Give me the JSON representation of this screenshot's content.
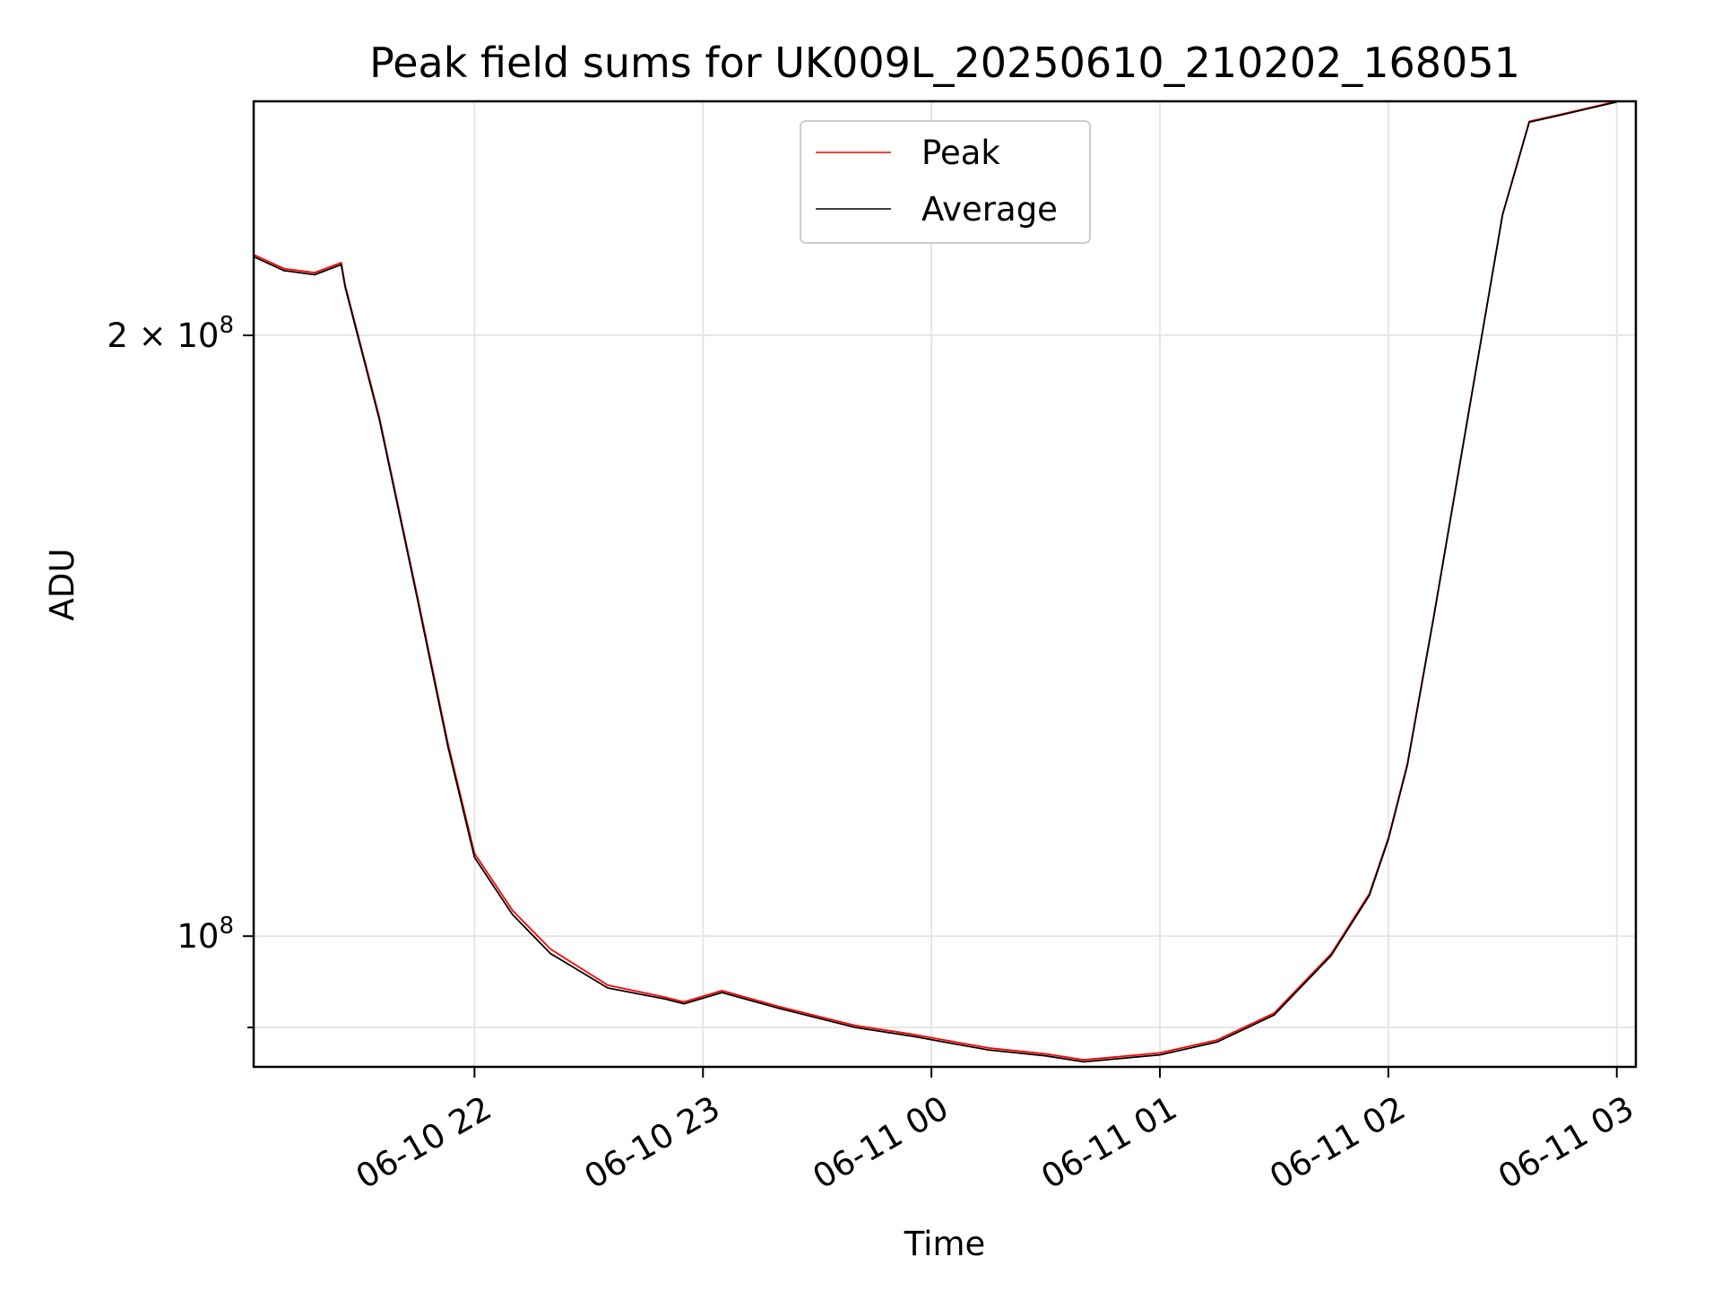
{
  "chart_data": {
    "type": "line",
    "title": "Peak field sums for UK009L_20250610_210202_168051",
    "xlabel": "Time",
    "ylabel": "ADU",
    "y_scale": "log",
    "ylim": [
      86000000,
      262000000
    ],
    "xlim": [
      "2025-06-10 21:02",
      "2025-06-11 03:05"
    ],
    "grid": true,
    "legend_position": "top-center",
    "x_ticks": [
      {
        "label": "06-10 22",
        "value": "2025-06-10 22:00"
      },
      {
        "label": "06-10 23",
        "value": "2025-06-10 23:00"
      },
      {
        "label": "06-11 00",
        "value": "2025-06-11 00:00"
      },
      {
        "label": "06-11 01",
        "value": "2025-06-11 01:00"
      },
      {
        "label": "06-11 02",
        "value": "2025-06-11 02:00"
      },
      {
        "label": "06-11 03",
        "value": "2025-06-11 03:00"
      }
    ],
    "y_ticks": [
      {
        "label_base": "2 × 10",
        "label_exp": "8",
        "value": 200000000
      },
      {
        "label_base": "10",
        "label_exp": "8",
        "value": 100000000
      }
    ],
    "series": [
      {
        "name": "Peak",
        "color": "#ff0000",
        "points": [
          [
            "2025-06-10 21:02",
            219500000
          ],
          [
            "2025-06-10 21:10",
            216000000
          ],
          [
            "2025-06-10 21:18",
            215000000
          ],
          [
            "2025-06-10 21:25",
            217500000
          ],
          [
            "2025-06-10 21:26",
            212000000
          ],
          [
            "2025-06-10 21:35",
            182000000
          ],
          [
            "2025-06-10 21:45",
            148000000
          ],
          [
            "2025-06-10 21:53",
            125000000
          ],
          [
            "2025-06-10 22:00",
            110000000
          ],
          [
            "2025-06-10 22:10",
            103000000
          ],
          [
            "2025-06-10 22:20",
            98500000
          ],
          [
            "2025-06-10 22:35",
            94500000
          ],
          [
            "2025-06-10 22:50",
            93200000
          ],
          [
            "2025-06-10 22:55",
            92700000
          ],
          [
            "2025-06-10 23:05",
            93900000
          ],
          [
            "2025-06-10 23:20",
            92200000
          ],
          [
            "2025-06-10 23:40",
            90200000
          ],
          [
            "2025-06-10 23:55",
            89300000
          ],
          [
            "2025-06-11 00:02",
            88800000
          ],
          [
            "2025-06-11 00:15",
            87900000
          ],
          [
            "2025-06-11 00:30",
            87300000
          ],
          [
            "2025-06-11 00:40",
            86700000
          ],
          [
            "2025-06-11 01:00",
            87400000
          ],
          [
            "2025-06-11 01:15",
            88700000
          ],
          [
            "2025-06-11 01:30",
            91500000
          ],
          [
            "2025-06-11 01:45",
            98000000
          ],
          [
            "2025-06-11 01:55",
            105000000
          ],
          [
            "2025-06-11 02:00",
            112000000
          ],
          [
            "2025-06-11 02:05",
            122000000
          ],
          [
            "2025-06-11 02:12",
            145000000
          ],
          [
            "2025-06-11 02:20",
            178000000
          ],
          [
            "2025-06-11 02:30",
            230000000
          ],
          [
            "2025-06-11 02:37",
            256000000
          ],
          [
            "2025-06-11 02:45",
            258000000
          ],
          [
            "2025-06-11 03:00",
            262000000
          ]
        ]
      },
      {
        "name": "Average",
        "color": "#000000",
        "points": [
          [
            "2025-06-10 21:02",
            219000000
          ],
          [
            "2025-06-10 21:10",
            215500000
          ],
          [
            "2025-06-10 21:18",
            214500000
          ],
          [
            "2025-06-10 21:25",
            217000000
          ],
          [
            "2025-06-10 21:26",
            211500000
          ],
          [
            "2025-06-10 21:35",
            181500000
          ],
          [
            "2025-06-10 21:45",
            147500000
          ],
          [
            "2025-06-10 21:53",
            124500000
          ],
          [
            "2025-06-10 22:00",
            109500000
          ],
          [
            "2025-06-10 22:10",
            102500000
          ],
          [
            "2025-06-10 22:20",
            98000000
          ],
          [
            "2025-06-10 22:35",
            94200000
          ],
          [
            "2025-06-10 22:50",
            93000000
          ],
          [
            "2025-06-10 22:55",
            92500000
          ],
          [
            "2025-06-10 23:05",
            93700000
          ],
          [
            "2025-06-10 23:20",
            92000000
          ],
          [
            "2025-06-10 23:40",
            90000000
          ],
          [
            "2025-06-10 23:55",
            89100000
          ],
          [
            "2025-06-11 00:02",
            88600000
          ],
          [
            "2025-06-11 00:15",
            87700000
          ],
          [
            "2025-06-11 00:30",
            87100000
          ],
          [
            "2025-06-11 00:40",
            86500000
          ],
          [
            "2025-06-11 01:00",
            87200000
          ],
          [
            "2025-06-11 01:15",
            88500000
          ],
          [
            "2025-06-11 01:30",
            91300000
          ],
          [
            "2025-06-11 01:45",
            97800000
          ],
          [
            "2025-06-11 01:55",
            104800000
          ],
          [
            "2025-06-11 02:00",
            111800000
          ],
          [
            "2025-06-11 02:05",
            121800000
          ],
          [
            "2025-06-11 02:12",
            144800000
          ],
          [
            "2025-06-11 02:20",
            177800000
          ],
          [
            "2025-06-11 02:30",
            229800000
          ],
          [
            "2025-06-11 02:37",
            255800000
          ],
          [
            "2025-06-11 02:45",
            257800000
          ],
          [
            "2025-06-11 03:00",
            261800000
          ]
        ]
      }
    ]
  }
}
